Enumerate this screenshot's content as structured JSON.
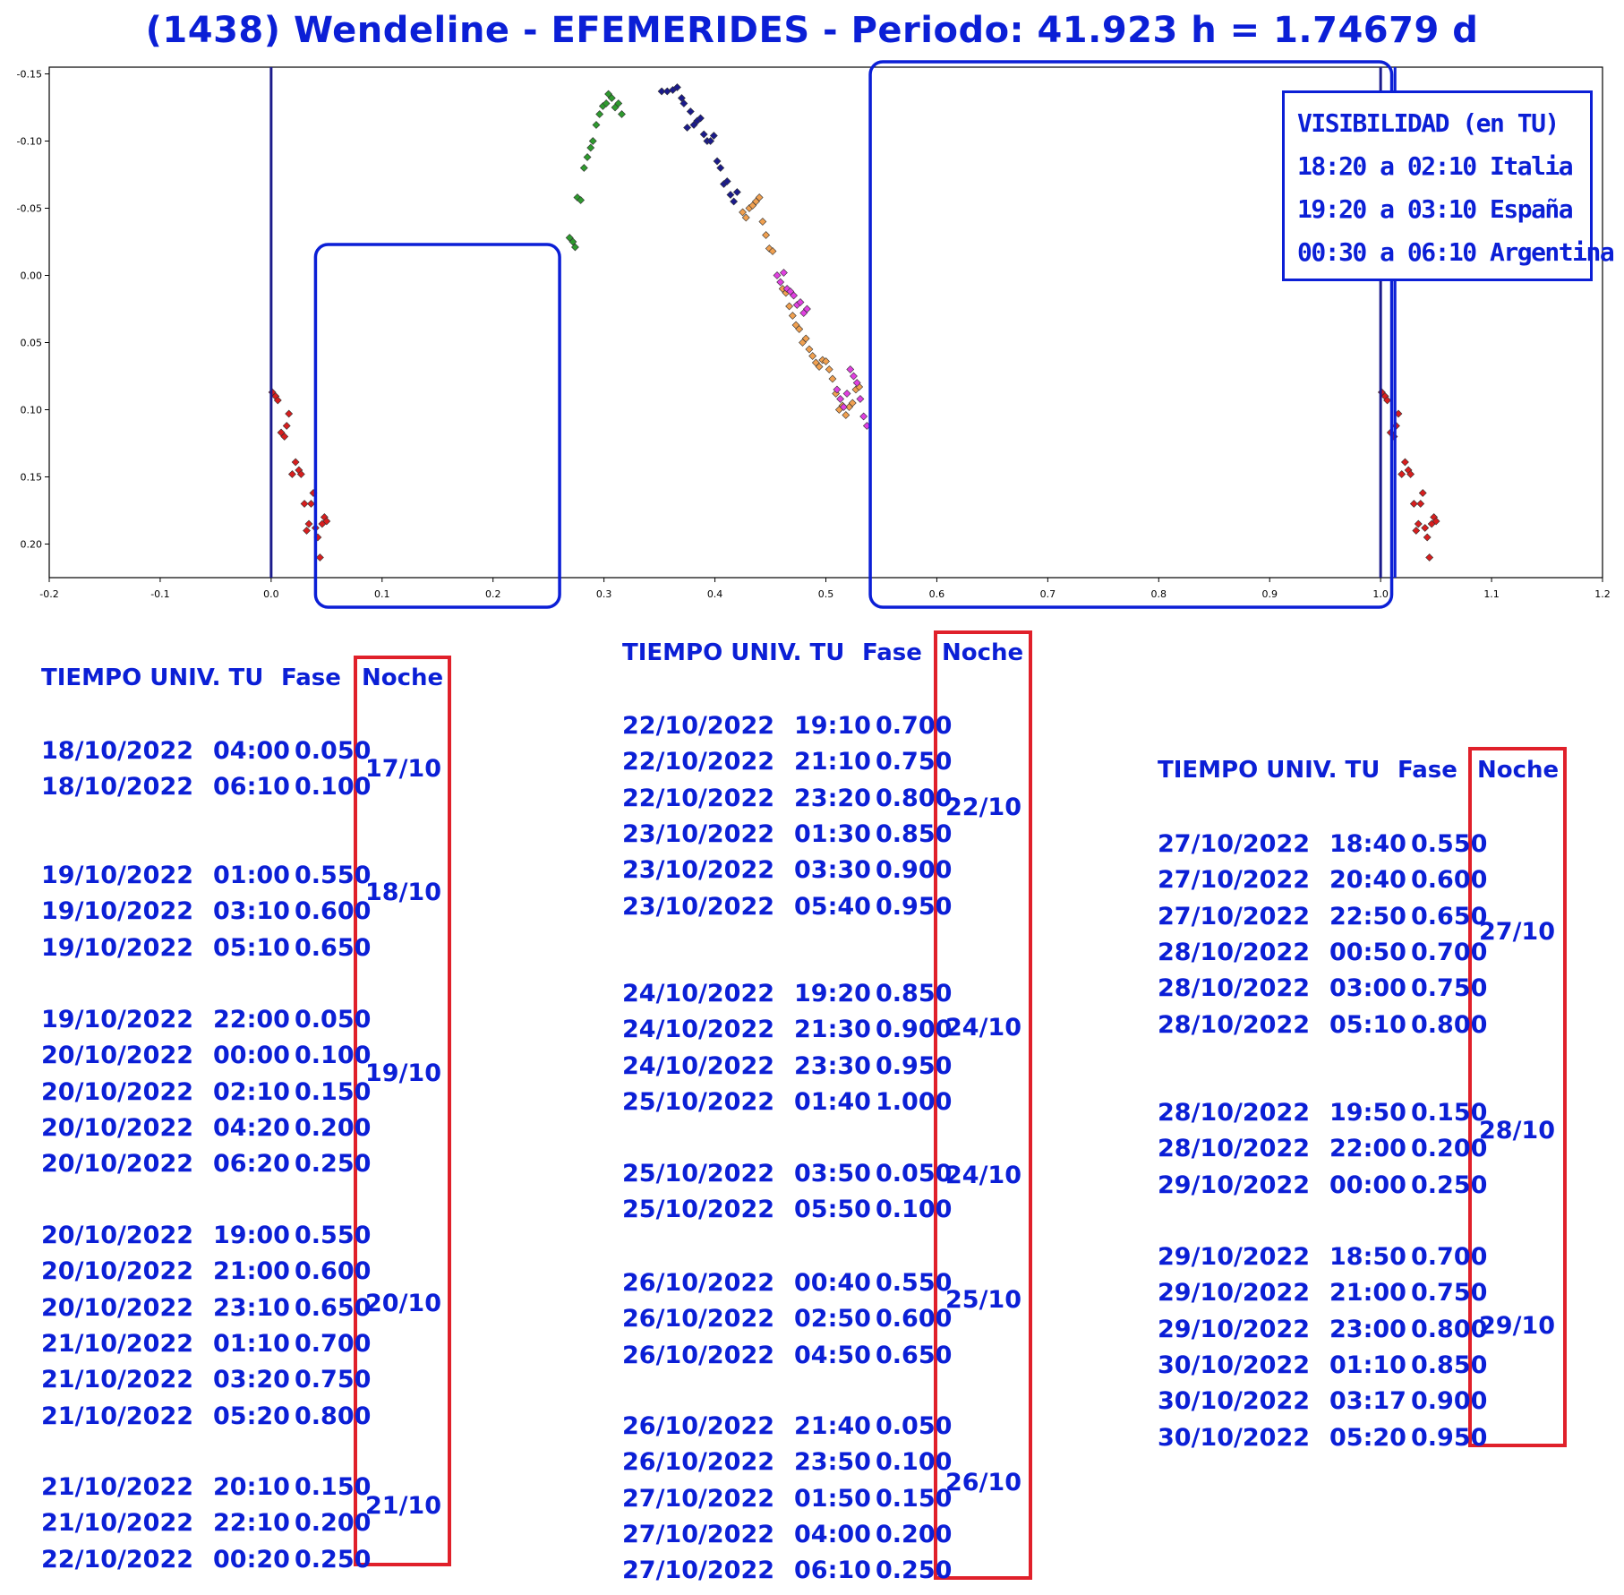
{
  "title": "(1438) Wendeline - EFEMERIDES - Periodo: 41.923 h = 1.74679 d",
  "chart_data": {
    "type": "scatter",
    "title": "(1438) Wendeline - EFEMERIDES - Periodo: 41.923 h = 1.74679 d",
    "xlabel": "",
    "ylabel": "",
    "xlim": [
      -0.2,
      1.2
    ],
    "ylim": [
      0.225,
      -0.155
    ],
    "y_inverted": true,
    "grid": true,
    "x_ticks": [
      "-0.2",
      "-0.1",
      "0.0",
      "0.1",
      "0.2",
      "0.3",
      "0.4",
      "0.5",
      "0.6",
      "0.7",
      "0.8",
      "0.9",
      "1.0",
      "1.1",
      "1.2"
    ],
    "y_ticks": [
      "-0.15",
      "-0.10",
      "-0.05",
      "0.00",
      "0.05",
      "0.10",
      "0.15",
      "0.20"
    ],
    "vertical_lines_x": [
      0.0,
      1.0
    ],
    "highlight_boxes_x": [
      [
        0.04,
        0.26
      ],
      [
        0.54,
        1.01
      ]
    ],
    "colors": {
      "red": "#d81e1e",
      "green": "#2e9a2e",
      "navy": "#1b1b8c",
      "orange": "#f0a050",
      "magenta": "#e040e0",
      "box": "#0b1fd6"
    },
    "series": [
      {
        "color": "red",
        "points": [
          [
            0.001,
            0.087
          ],
          [
            0.004,
            0.09
          ],
          [
            0.006,
            0.093
          ],
          [
            0.009,
            0.117
          ],
          [
            0.012,
            0.12
          ],
          [
            0.014,
            0.112
          ],
          [
            0.016,
            0.103
          ],
          [
            0.019,
            0.148
          ],
          [
            0.022,
            0.139
          ],
          [
            0.025,
            0.145
          ],
          [
            0.027,
            0.148
          ],
          [
            0.03,
            0.17
          ],
          [
            0.032,
            0.19
          ],
          [
            0.034,
            0.185
          ],
          [
            0.036,
            0.17
          ],
          [
            0.038,
            0.162
          ],
          [
            0.04,
            0.188
          ],
          [
            0.042,
            0.195
          ],
          [
            0.044,
            0.21
          ],
          [
            0.046,
            0.185
          ],
          [
            0.048,
            0.18
          ],
          [
            0.05,
            0.183
          ]
        ]
      },
      {
        "color": "green",
        "points": [
          [
            0.269,
            -0.028
          ],
          [
            0.272,
            -0.025
          ],
          [
            0.274,
            -0.021
          ],
          [
            0.276,
            -0.058
          ],
          [
            0.279,
            -0.056
          ],
          [
            0.282,
            -0.08
          ],
          [
            0.285,
            -0.088
          ],
          [
            0.288,
            -0.095
          ],
          [
            0.29,
            -0.1
          ],
          [
            0.293,
            -0.112
          ],
          [
            0.296,
            -0.12
          ],
          [
            0.299,
            -0.126
          ],
          [
            0.302,
            -0.128
          ],
          [
            0.304,
            -0.135
          ],
          [
            0.307,
            -0.132
          ],
          [
            0.31,
            -0.125
          ],
          [
            0.313,
            -0.128
          ],
          [
            0.316,
            -0.12
          ]
        ]
      },
      {
        "color": "navy",
        "points": [
          [
            0.352,
            -0.137
          ],
          [
            0.357,
            -0.137
          ],
          [
            0.362,
            -0.138
          ],
          [
            0.366,
            -0.14
          ],
          [
            0.37,
            -0.132
          ],
          [
            0.372,
            -0.128
          ],
          [
            0.375,
            -0.11
          ],
          [
            0.378,
            -0.122
          ],
          [
            0.381,
            -0.112
          ],
          [
            0.384,
            -0.115
          ],
          [
            0.387,
            -0.117
          ],
          [
            0.39,
            -0.105
          ],
          [
            0.393,
            -0.1
          ],
          [
            0.396,
            -0.1
          ],
          [
            0.399,
            -0.104
          ],
          [
            0.402,
            -0.085
          ],
          [
            0.405,
            -0.08
          ],
          [
            0.408,
            -0.068
          ],
          [
            0.411,
            -0.07
          ],
          [
            0.414,
            -0.06
          ],
          [
            0.417,
            -0.055
          ],
          [
            0.42,
            -0.062
          ]
        ]
      },
      {
        "color": "orange",
        "points": [
          [
            0.425,
            -0.047
          ],
          [
            0.428,
            -0.043
          ],
          [
            0.431,
            -0.05
          ],
          [
            0.434,
            -0.052
          ],
          [
            0.437,
            -0.055
          ],
          [
            0.44,
            -0.058
          ],
          [
            0.443,
            -0.04
          ],
          [
            0.446,
            -0.03
          ],
          [
            0.449,
            -0.02
          ],
          [
            0.452,
            -0.018
          ],
          [
            0.461,
            0.01
          ],
          [
            0.464,
            0.013
          ],
          [
            0.467,
            0.023
          ],
          [
            0.47,
            0.03
          ],
          [
            0.473,
            0.037
          ],
          [
            0.476,
            0.04
          ],
          [
            0.479,
            0.05
          ],
          [
            0.482,
            0.047
          ],
          [
            0.485,
            0.055
          ],
          [
            0.488,
            0.06
          ],
          [
            0.491,
            0.065
          ],
          [
            0.494,
            0.068
          ],
          [
            0.497,
            0.063
          ],
          [
            0.5,
            0.064
          ],
          [
            0.503,
            0.07
          ],
          [
            0.506,
            0.077
          ],
          [
            0.509,
            0.088
          ],
          [
            0.512,
            0.1
          ],
          [
            0.515,
            0.097
          ],
          [
            0.518,
            0.104
          ],
          [
            0.521,
            0.098
          ],
          [
            0.524,
            0.095
          ],
          [
            0.527,
            0.085
          ],
          [
            0.53,
            0.083
          ]
        ]
      },
      {
        "color": "magenta",
        "points": [
          [
            0.456,
            0.0
          ],
          [
            0.459,
            0.005
          ],
          [
            0.462,
            -0.002
          ],
          [
            0.465,
            0.01
          ],
          [
            0.468,
            0.012
          ],
          [
            0.471,
            0.015
          ],
          [
            0.474,
            0.022
          ],
          [
            0.477,
            0.02
          ],
          [
            0.48,
            0.028
          ],
          [
            0.483,
            0.025
          ],
          [
            0.51,
            0.085
          ],
          [
            0.513,
            0.092
          ],
          [
            0.516,
            0.098
          ],
          [
            0.519,
            0.088
          ],
          [
            0.522,
            0.07
          ],
          [
            0.525,
            0.075
          ],
          [
            0.528,
            0.08
          ],
          [
            0.531,
            0.092
          ],
          [
            0.534,
            0.105
          ],
          [
            0.537,
            0.112
          ]
        ]
      },
      {
        "color": "red",
        "points": [
          [
            1.001,
            0.087
          ],
          [
            1.004,
            0.09
          ],
          [
            1.006,
            0.093
          ],
          [
            1.009,
            0.117
          ],
          [
            1.012,
            0.12
          ],
          [
            1.014,
            0.112
          ],
          [
            1.016,
            0.103
          ],
          [
            1.019,
            0.148
          ],
          [
            1.022,
            0.139
          ],
          [
            1.025,
            0.145
          ],
          [
            1.027,
            0.148
          ],
          [
            1.03,
            0.17
          ],
          [
            1.032,
            0.19
          ],
          [
            1.034,
            0.185
          ],
          [
            1.036,
            0.17
          ],
          [
            1.038,
            0.162
          ],
          [
            1.04,
            0.188
          ],
          [
            1.042,
            0.195
          ],
          [
            1.044,
            0.21
          ],
          [
            1.046,
            0.185
          ],
          [
            1.048,
            0.18
          ],
          [
            1.05,
            0.183
          ]
        ]
      }
    ]
  },
  "visibility": {
    "heading": "VISIBILIDAD (en TU)",
    "lines": [
      "18:20 a 02:10 Italia",
      "19:20 a 03:10 España",
      "00:30 a 06:10 Argentina"
    ]
  },
  "tables": [
    {
      "header": {
        "tiempo": "TIEMPO UNIV. TU",
        "fase": "Fase",
        "noche": "Noche"
      },
      "rows": [
        {
          "fecha": "18/10/2022",
          "hora": "04:00",
          "fase": "0.050"
        },
        {
          "fecha": "18/10/2022",
          "hora": "06:10",
          "fase": "0.100"
        },
        {
          "fecha": "19/10/2022",
          "hora": "01:00",
          "fase": "0.550"
        },
        {
          "fecha": "19/10/2022",
          "hora": "03:10",
          "fase": "0.600"
        },
        {
          "fecha": "19/10/2022",
          "hora": "05:10",
          "fase": "0.650"
        },
        {
          "fecha": "19/10/2022",
          "hora": "22:00",
          "fase": "0.050"
        },
        {
          "fecha": "20/10/2022",
          "hora": "00:00",
          "fase": "0.100"
        },
        {
          "fecha": "20/10/2022",
          "hora": "02:10",
          "fase": "0.150"
        },
        {
          "fecha": "20/10/2022",
          "hora": "04:20",
          "fase": "0.200"
        },
        {
          "fecha": "20/10/2022",
          "hora": "06:20",
          "fase": "0.250"
        },
        {
          "fecha": "20/10/2022",
          "hora": "19:00",
          "fase": "0.550"
        },
        {
          "fecha": "20/10/2022",
          "hora": "21:00",
          "fase": "0.600"
        },
        {
          "fecha": "20/10/2022",
          "hora": "23:10",
          "fase": "0.650"
        },
        {
          "fecha": "21/10/2022",
          "hora": "01:10",
          "fase": "0.700"
        },
        {
          "fecha": "21/10/2022",
          "hora": "03:20",
          "fase": "0.750"
        },
        {
          "fecha": "21/10/2022",
          "hora": "05:20",
          "fase": "0.800"
        },
        {
          "fecha": "21/10/2022",
          "hora": "20:10",
          "fase": "0.150"
        },
        {
          "fecha": "21/10/2022",
          "hora": "22:10",
          "fase": "0.200"
        },
        {
          "fecha": "22/10/2022",
          "hora": "00:20",
          "fase": "0.250"
        }
      ],
      "nights": [
        "17/10",
        "18/10",
        "19/10",
        "20/10",
        "21/10"
      ]
    },
    {
      "header": {
        "tiempo": "TIEMPO UNIV. TU",
        "fase": "Fase",
        "noche": "Noche"
      },
      "rows": [
        {
          "fecha": "22/10/2022",
          "hora": "19:10",
          "fase": "0.700"
        },
        {
          "fecha": "22/10/2022",
          "hora": "21:10",
          "fase": "0.750"
        },
        {
          "fecha": "22/10/2022",
          "hora": "23:20",
          "fase": "0.800"
        },
        {
          "fecha": "23/10/2022",
          "hora": "01:30",
          "fase": "0.850"
        },
        {
          "fecha": "23/10/2022",
          "hora": "03:30",
          "fase": "0.900"
        },
        {
          "fecha": "23/10/2022",
          "hora": "05:40",
          "fase": "0.950"
        },
        {
          "fecha": "24/10/2022",
          "hora": "19:20",
          "fase": "0.850"
        },
        {
          "fecha": "24/10/2022",
          "hora": "21:30",
          "fase": "0.900"
        },
        {
          "fecha": "24/10/2022",
          "hora": "23:30",
          "fase": "0.950"
        },
        {
          "fecha": "25/10/2022",
          "hora": "01:40",
          "fase": "1.000"
        },
        {
          "fecha": "25/10/2022",
          "hora": "03:50",
          "fase": "0.050"
        },
        {
          "fecha": "25/10/2022",
          "hora": "05:50",
          "fase": "0.100"
        },
        {
          "fecha": "26/10/2022",
          "hora": "00:40",
          "fase": "0.550"
        },
        {
          "fecha": "26/10/2022",
          "hora": "02:50",
          "fase": "0.600"
        },
        {
          "fecha": "26/10/2022",
          "hora": "04:50",
          "fase": "0.650"
        },
        {
          "fecha": "26/10/2022",
          "hora": "21:40",
          "fase": "0.050"
        },
        {
          "fecha": "26/10/2022",
          "hora": "23:50",
          "fase": "0.100"
        },
        {
          "fecha": "27/10/2022",
          "hora": "01:50",
          "fase": "0.150"
        },
        {
          "fecha": "27/10/2022",
          "hora": "04:00",
          "fase": "0.200"
        },
        {
          "fecha": "27/10/2022",
          "hora": "06:10",
          "fase": "0.250"
        }
      ],
      "nights": [
        "22/10",
        "24/10",
        "24/10",
        "25/10",
        "26/10"
      ]
    },
    {
      "header": {
        "tiempo": "TIEMPO UNIV. TU",
        "fase": "Fase",
        "noche": "Noche"
      },
      "rows": [
        {
          "fecha": "27/10/2022",
          "hora": "18:40",
          "fase": "0.550"
        },
        {
          "fecha": "27/10/2022",
          "hora": "20:40",
          "fase": "0.600"
        },
        {
          "fecha": "27/10/2022",
          "hora": "22:50",
          "fase": "0.650"
        },
        {
          "fecha": "28/10/2022",
          "hora": "00:50",
          "fase": "0.700"
        },
        {
          "fecha": "28/10/2022",
          "hora": "03:00",
          "fase": "0.750"
        },
        {
          "fecha": "28/10/2022",
          "hora": "05:10",
          "fase": "0.800"
        },
        {
          "fecha": "28/10/2022",
          "hora": "19:50",
          "fase": "0.150"
        },
        {
          "fecha": "28/10/2022",
          "hora": "22:00",
          "fase": "0.200"
        },
        {
          "fecha": "29/10/2022",
          "hora": "00:00",
          "fase": "0.250"
        },
        {
          "fecha": "29/10/2022",
          "hora": "18:50",
          "fase": "0.700"
        },
        {
          "fecha": "29/10/2022",
          "hora": "21:00",
          "fase": "0.750"
        },
        {
          "fecha": "29/10/2022",
          "hora": "23:00",
          "fase": "0.800"
        },
        {
          "fecha": "30/10/2022",
          "hora": "01:10",
          "fase": "0.850"
        },
        {
          "fecha": "30/10/2022",
          "hora": "03:17",
          "fase": "0.900"
        },
        {
          "fecha": "30/10/2022",
          "hora": "05:20",
          "fase": "0.950"
        }
      ],
      "nights": [
        "27/10",
        "28/10",
        "29/10"
      ]
    }
  ]
}
